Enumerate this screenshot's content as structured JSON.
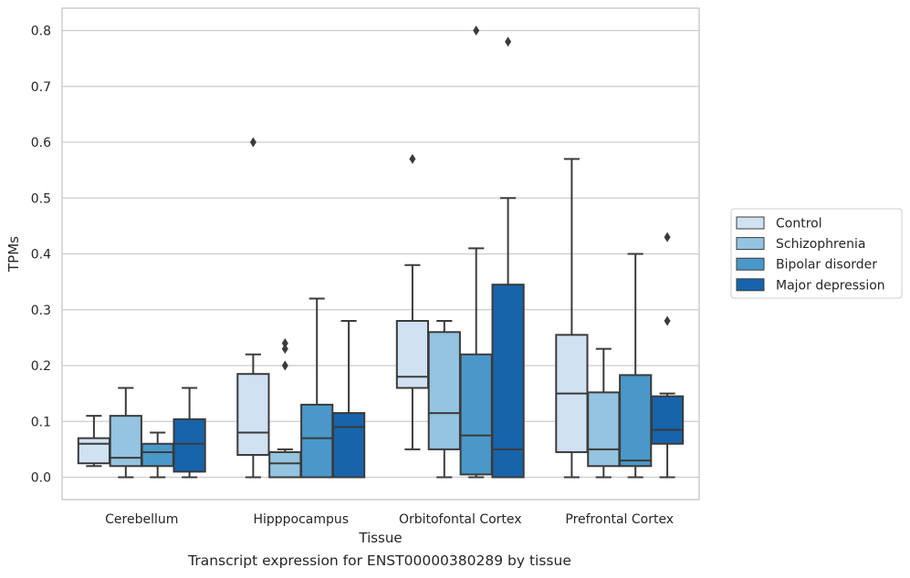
{
  "caption": "Transcript expression for ENST00000380289 by tissue",
  "chart_data": {
    "type": "box",
    "title": "",
    "xlabel": "Tissue",
    "ylabel": "TPMs",
    "ylim": [
      -0.04,
      0.84
    ],
    "yticks": [
      0.0,
      0.1,
      0.2,
      0.3,
      0.4,
      0.5,
      0.6,
      0.7,
      0.8
    ],
    "ytick_labels": [
      "0.0",
      "0.1",
      "0.2",
      "0.3",
      "0.4",
      "0.5",
      "0.6",
      "0.7",
      "0.8"
    ],
    "grid": "horizontal",
    "legend_position": "right",
    "categories": [
      "Cerebellum",
      "Hipppocampus",
      "Orbitofontal Cortex",
      "Prefrontal Cortex"
    ],
    "series": [
      {
        "name": "Control",
        "color": "#d0e1f2",
        "boxes": [
          {
            "whislo": 0.02,
            "q1": 0.025,
            "med": 0.06,
            "q3": 0.07,
            "whishi": 0.11,
            "fliers": []
          },
          {
            "whislo": 0.0,
            "q1": 0.04,
            "med": 0.08,
            "q3": 0.185,
            "whishi": 0.22,
            "fliers": [
              0.6
            ]
          },
          {
            "whislo": 0.05,
            "q1": 0.16,
            "med": 0.18,
            "q3": 0.28,
            "whishi": 0.38,
            "fliers": [
              0.57
            ]
          },
          {
            "whislo": 0.0,
            "q1": 0.045,
            "med": 0.15,
            "q3": 0.255,
            "whishi": 0.57,
            "fliers": []
          }
        ]
      },
      {
        "name": "Schizophrenia",
        "color": "#94c4df",
        "boxes": [
          {
            "whislo": 0.0,
            "q1": 0.02,
            "med": 0.035,
            "q3": 0.11,
            "whishi": 0.16,
            "fliers": []
          },
          {
            "whislo": 0.0,
            "q1": 0.0,
            "med": 0.025,
            "q3": 0.045,
            "whishi": 0.05,
            "fliers": [
              0.2,
              0.23,
              0.24
            ]
          },
          {
            "whislo": 0.0,
            "q1": 0.05,
            "med": 0.115,
            "q3": 0.26,
            "whishi": 0.28,
            "fliers": []
          },
          {
            "whislo": 0.0,
            "q1": 0.02,
            "med": 0.05,
            "q3": 0.152,
            "whishi": 0.23,
            "fliers": []
          }
        ]
      },
      {
        "name": "Bipolar disorder",
        "color": "#4a98c9",
        "boxes": [
          {
            "whislo": 0.0,
            "q1": 0.02,
            "med": 0.045,
            "q3": 0.06,
            "whishi": 0.08,
            "fliers": []
          },
          {
            "whislo": 0.0,
            "q1": 0.0,
            "med": 0.07,
            "q3": 0.13,
            "whishi": 0.32,
            "fliers": []
          },
          {
            "whislo": 0.0,
            "q1": 0.005,
            "med": 0.075,
            "q3": 0.22,
            "whishi": 0.41,
            "fliers": [
              0.8
            ]
          },
          {
            "whislo": 0.0,
            "q1": 0.02,
            "med": 0.03,
            "q3": 0.183,
            "whishi": 0.4,
            "fliers": []
          }
        ]
      },
      {
        "name": "Major depression",
        "color": "#1764ab",
        "boxes": [
          {
            "whislo": 0.0,
            "q1": 0.01,
            "med": 0.06,
            "q3": 0.104,
            "whishi": 0.16,
            "fliers": []
          },
          {
            "whislo": 0.0,
            "q1": 0.0,
            "med": 0.09,
            "q3": 0.115,
            "whishi": 0.28,
            "fliers": []
          },
          {
            "whislo": 0.0,
            "q1": 0.0,
            "med": 0.05,
            "q3": 0.345,
            "whishi": 0.5,
            "fliers": [
              0.78
            ]
          },
          {
            "whislo": 0.0,
            "q1": 0.06,
            "med": 0.085,
            "q3": 0.145,
            "whishi": 0.15,
            "fliers": [
              0.28,
              0.43
            ]
          }
        ]
      }
    ]
  }
}
